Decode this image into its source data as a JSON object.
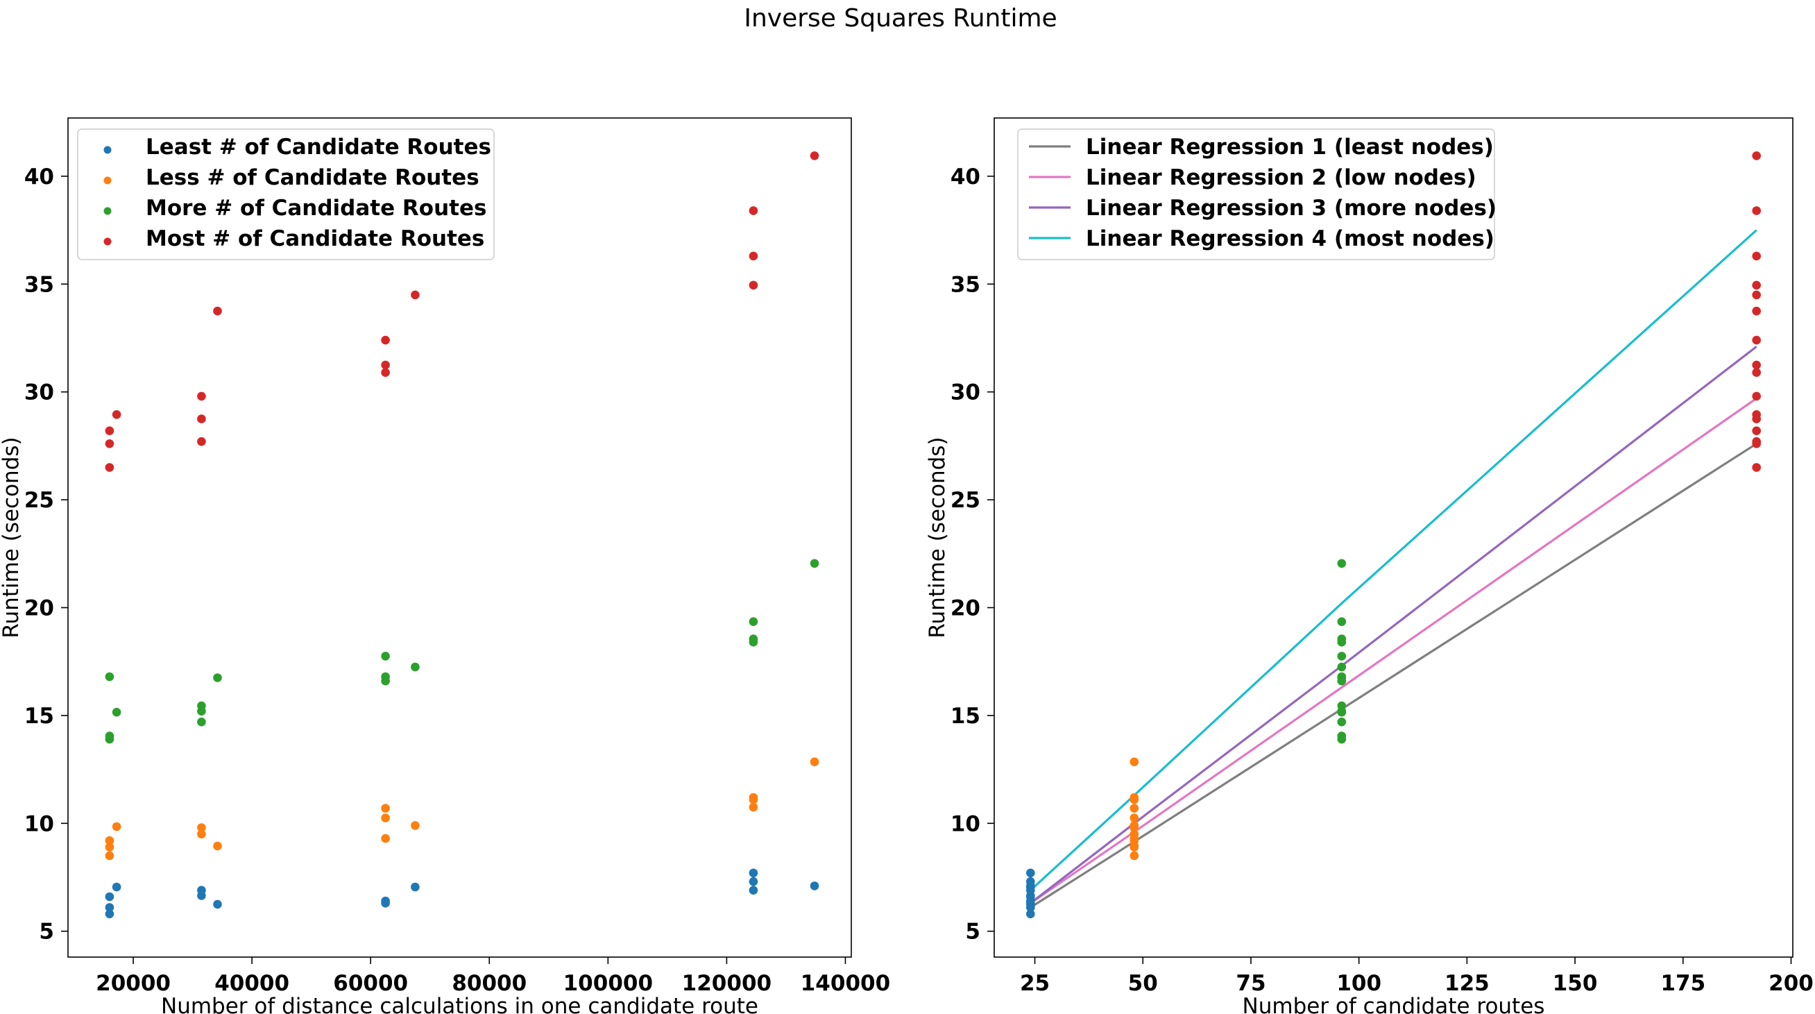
{
  "figure": {
    "title": "Inverse Squares Runtime"
  },
  "chart_data": [
    {
      "type": "scatter",
      "title": "",
      "xlabel": "Number of distance calculations in one candidate route",
      "ylabel": "Runtime (seconds)",
      "xlim": [
        9000,
        141000
      ],
      "ylim": [
        3.8,
        42.7
      ],
      "xticks": [
        20000,
        40000,
        60000,
        80000,
        100000,
        120000,
        140000
      ],
      "yticks": [
        5,
        10,
        15,
        20,
        25,
        30,
        35,
        40
      ],
      "legend_position": "top-left",
      "series": [
        {
          "name": "Least # of Candidate Routes",
          "color": "#1f77b4",
          "marker": "circle",
          "points": [
            [
              16000,
              6.6
            ],
            [
              16000,
              6.1
            ],
            [
              16000,
              5.8
            ],
            [
              17200,
              7.05
            ],
            [
              31500,
              6.9
            ],
            [
              31500,
              6.65
            ],
            [
              34200,
              6.25
            ],
            [
              62500,
              6.4
            ],
            [
              62500,
              6.3
            ],
            [
              67500,
              7.05
            ],
            [
              124500,
              7.7
            ],
            [
              124500,
              7.3
            ],
            [
              124500,
              6.9
            ],
            [
              134800,
              7.1
            ]
          ]
        },
        {
          "name": "Less # of Candidate Routes",
          "color": "#ff7f0e",
          "marker": "circle",
          "points": [
            [
              16000,
              9.2
            ],
            [
              16000,
              8.9
            ],
            [
              16000,
              8.5
            ],
            [
              17200,
              9.85
            ],
            [
              31500,
              9.8
            ],
            [
              31500,
              9.5
            ],
            [
              34200,
              8.95
            ],
            [
              62500,
              10.7
            ],
            [
              62500,
              10.25
            ],
            [
              62500,
              9.3
            ],
            [
              67500,
              9.9
            ],
            [
              124500,
              11.2
            ],
            [
              124500,
              11.1
            ],
            [
              124500,
              10.75
            ],
            [
              134800,
              12.85
            ]
          ]
        },
        {
          "name": "More # of Candidate Routes",
          "color": "#2ca02c",
          "marker": "circle",
          "points": [
            [
              16000,
              16.8
            ],
            [
              16000,
              14.05
            ],
            [
              16000,
              13.9
            ],
            [
              17200,
              15.15
            ],
            [
              31500,
              15.45
            ],
            [
              31500,
              15.2
            ],
            [
              31500,
              14.7
            ],
            [
              34200,
              16.75
            ],
            [
              62500,
              17.75
            ],
            [
              62500,
              16.8
            ],
            [
              62500,
              16.6
            ],
            [
              67500,
              17.25
            ],
            [
              124500,
              19.35
            ],
            [
              124500,
              18.55
            ],
            [
              124500,
              18.4
            ],
            [
              134800,
              22.05
            ]
          ]
        },
        {
          "name": "Most # of Candidate Routes",
          "color": "#d62728",
          "marker": "circle",
          "points": [
            [
              16000,
              28.2
            ],
            [
              16000,
              27.6
            ],
            [
              16000,
              26.5
            ],
            [
              17200,
              28.95
            ],
            [
              31500,
              29.8
            ],
            [
              31500,
              28.75
            ],
            [
              31500,
              27.7
            ],
            [
              34200,
              33.75
            ],
            [
              62500,
              32.4
            ],
            [
              62500,
              31.25
            ],
            [
              62500,
              30.9
            ],
            [
              67500,
              34.5
            ],
            [
              124500,
              38.4
            ],
            [
              124500,
              36.3
            ],
            [
              124500,
              34.95
            ],
            [
              134800,
              40.95
            ]
          ]
        }
      ]
    },
    {
      "type": "scatter",
      "title": "",
      "xlabel": "Number of candidate routes",
      "ylabel": "Runtime (seconds)",
      "xlim": [
        15.6,
        200.4
      ],
      "ylim": [
        3.8,
        42.7
      ],
      "xticks": [
        25,
        50,
        75,
        100,
        125,
        150,
        175,
        200
      ],
      "yticks": [
        5,
        10,
        15,
        20,
        25,
        30,
        35,
        40
      ],
      "legend_position": "top-left",
      "series": [
        {
          "color": "#1f77b4",
          "marker": "circle",
          "points": [
            [
              24,
              5.8
            ],
            [
              24,
              6.1
            ],
            [
              24,
              6.25
            ],
            [
              24,
              6.3
            ],
            [
              24,
              6.4
            ],
            [
              24,
              6.6
            ],
            [
              24,
              6.65
            ],
            [
              24,
              6.9
            ],
            [
              24,
              7.05
            ],
            [
              24,
              7.1
            ],
            [
              24,
              7.3
            ],
            [
              24,
              7.7
            ]
          ]
        },
        {
          "color": "#ff7f0e",
          "marker": "circle",
          "points": [
            [
              48,
              8.5
            ],
            [
              48,
              8.9
            ],
            [
              48,
              8.95
            ],
            [
              48,
              9.2
            ],
            [
              48,
              9.3
            ],
            [
              48,
              9.5
            ],
            [
              48,
              9.8
            ],
            [
              48,
              9.85
            ],
            [
              48,
              9.9
            ],
            [
              48,
              10.25
            ],
            [
              48,
              10.7
            ],
            [
              48,
              11.1
            ],
            [
              48,
              11.2
            ],
            [
              48,
              12.85
            ]
          ]
        },
        {
          "color": "#2ca02c",
          "marker": "circle",
          "points": [
            [
              96,
              13.9
            ],
            [
              96,
              14.05
            ],
            [
              96,
              14.7
            ],
            [
              96,
              15.15
            ],
            [
              96,
              15.2
            ],
            [
              96,
              15.45
            ],
            [
              96,
              16.6
            ],
            [
              96,
              16.75
            ],
            [
              96,
              16.8
            ],
            [
              96,
              17.25
            ],
            [
              96,
              17.75
            ],
            [
              96,
              18.4
            ],
            [
              96,
              18.55
            ],
            [
              96,
              19.35
            ],
            [
              96,
              22.05
            ]
          ]
        },
        {
          "color": "#d62728",
          "marker": "circle",
          "points": [
            [
              192,
              26.5
            ],
            [
              192,
              27.6
            ],
            [
              192,
              27.7
            ],
            [
              192,
              28.2
            ],
            [
              192,
              28.75
            ],
            [
              192,
              28.95
            ],
            [
              192,
              29.8
            ],
            [
              192,
              30.9
            ],
            [
              192,
              31.25
            ],
            [
              192,
              32.4
            ],
            [
              192,
              33.75
            ],
            [
              192,
              34.5
            ],
            [
              192,
              34.95
            ],
            [
              192,
              36.3
            ],
            [
              192,
              38.4
            ],
            [
              192,
              40.95
            ]
          ]
        }
      ],
      "lines": [
        {
          "name": "Linear Regression 1 (least nodes)",
          "color": "#7f7f7f",
          "points": [
            [
              24,
              6.1
            ],
            [
              48,
              9.15
            ],
            [
              96,
              15.3
            ],
            [
              192,
              27.6
            ]
          ]
        },
        {
          "name": "Linear Regression 2 (low nodes)",
          "color": "#e377c2",
          "points": [
            [
              24,
              6.3
            ],
            [
              48,
              9.6
            ],
            [
              96,
              16.3
            ],
            [
              192,
              29.7
            ]
          ]
        },
        {
          "name": "Linear Regression 3 (more nodes)",
          "color": "#9467bd",
          "points": [
            [
              24,
              6.3
            ],
            [
              48,
              10.0
            ],
            [
              96,
              17.3
            ],
            [
              192,
              32.1
            ]
          ]
        },
        {
          "name": "Linear Regression 4 (most nodes)",
          "color": "#17becf",
          "points": [
            [
              24,
              6.9
            ],
            [
              48,
              11.3
            ],
            [
              96,
              20.2
            ],
            [
              192,
              37.5
            ]
          ]
        }
      ]
    }
  ]
}
